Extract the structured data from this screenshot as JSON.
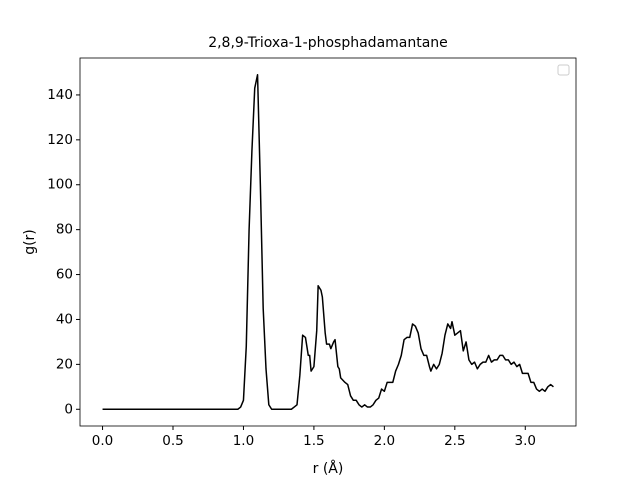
{
  "chart_data": {
    "type": "line",
    "title": "2,8,9-Trioxa-1-phosphadamantane",
    "xlabel": "r (Å)",
    "ylabel": "g(r)",
    "xlim": [
      -0.16,
      3.36
    ],
    "ylim": [
      -7.45,
      156.45
    ],
    "xticks": [
      {
        "value": 0,
        "label": "0.0"
      },
      0.5,
      {
        "value": 1,
        "label": "1.0"
      },
      1.5,
      {
        "value": 2,
        "label": "2.0"
      },
      2.5,
      {
        "value": 3,
        "label": "3.0"
      }
    ],
    "yticks": [
      0,
      20,
      40,
      60,
      80,
      100,
      120,
      140
    ],
    "grid": false,
    "x": [
      0.0,
      0.96,
      0.98,
      1.0,
      1.02,
      1.04,
      1.06,
      1.08,
      1.1,
      1.12,
      1.14,
      1.16,
      1.18,
      1.2,
      1.34,
      1.36,
      1.38,
      1.4,
      1.42,
      1.44,
      1.46,
      1.47,
      1.48,
      1.5,
      1.52,
      1.53,
      1.55,
      1.56,
      1.58,
      1.59,
      1.61,
      1.62,
      1.64,
      1.65,
      1.67,
      1.68,
      1.69,
      1.72,
      1.74,
      1.76,
      1.78,
      1.8,
      1.82,
      1.84,
      1.86,
      1.88,
      1.9,
      1.92,
      1.94,
      1.96,
      1.98,
      2.0,
      2.02,
      2.04,
      2.06,
      2.08,
      2.1,
      2.12,
      2.14,
      2.16,
      2.18,
      2.2,
      2.22,
      2.24,
      2.26,
      2.28,
      2.3,
      2.32,
      2.33,
      2.35,
      2.37,
      2.39,
      2.41,
      2.43,
      2.45,
      2.47,
      2.48,
      2.5,
      2.52,
      2.54,
      2.56,
      2.58,
      2.6,
      2.62,
      2.64,
      2.66,
      2.68,
      2.7,
      2.72,
      2.74,
      2.76,
      2.78,
      2.8,
      2.82,
      2.84,
      2.86,
      2.88,
      2.9,
      2.92,
      2.94,
      2.96,
      2.98,
      3.0,
      3.02,
      3.04,
      3.06,
      3.08,
      3.1,
      3.12,
      3.14,
      3.16,
      3.18,
      3.2
    ],
    "series": [
      {
        "color": "#000000",
        "values": [
          0,
          0,
          1,
          4,
          28,
          80,
          115,
          143,
          149,
          100,
          45,
          18,
          2,
          0,
          0,
          1,
          2,
          15,
          33,
          32,
          24,
          24,
          17,
          19,
          35,
          55,
          53,
          50,
          34,
          29,
          29,
          27,
          30,
          31,
          19,
          18,
          14,
          12,
          11,
          6,
          4,
          4,
          2,
          1,
          2,
          1,
          1,
          2,
          4,
          5,
          9,
          8,
          12,
          12,
          12,
          17,
          20,
          24,
          31,
          32,
          32,
          38,
          37,
          34,
          27,
          24,
          24,
          19,
          17,
          20,
          18,
          20,
          25,
          33,
          38,
          36,
          39,
          33,
          34,
          35,
          26,
          30,
          22,
          20,
          21,
          18,
          20,
          21,
          21,
          24,
          21,
          22,
          22,
          24,
          24,
          22,
          22,
          20,
          21,
          19,
          20,
          16,
          16,
          16,
          12,
          12,
          9,
          8,
          9,
          8,
          10,
          11,
          10
        ]
      }
    ]
  }
}
